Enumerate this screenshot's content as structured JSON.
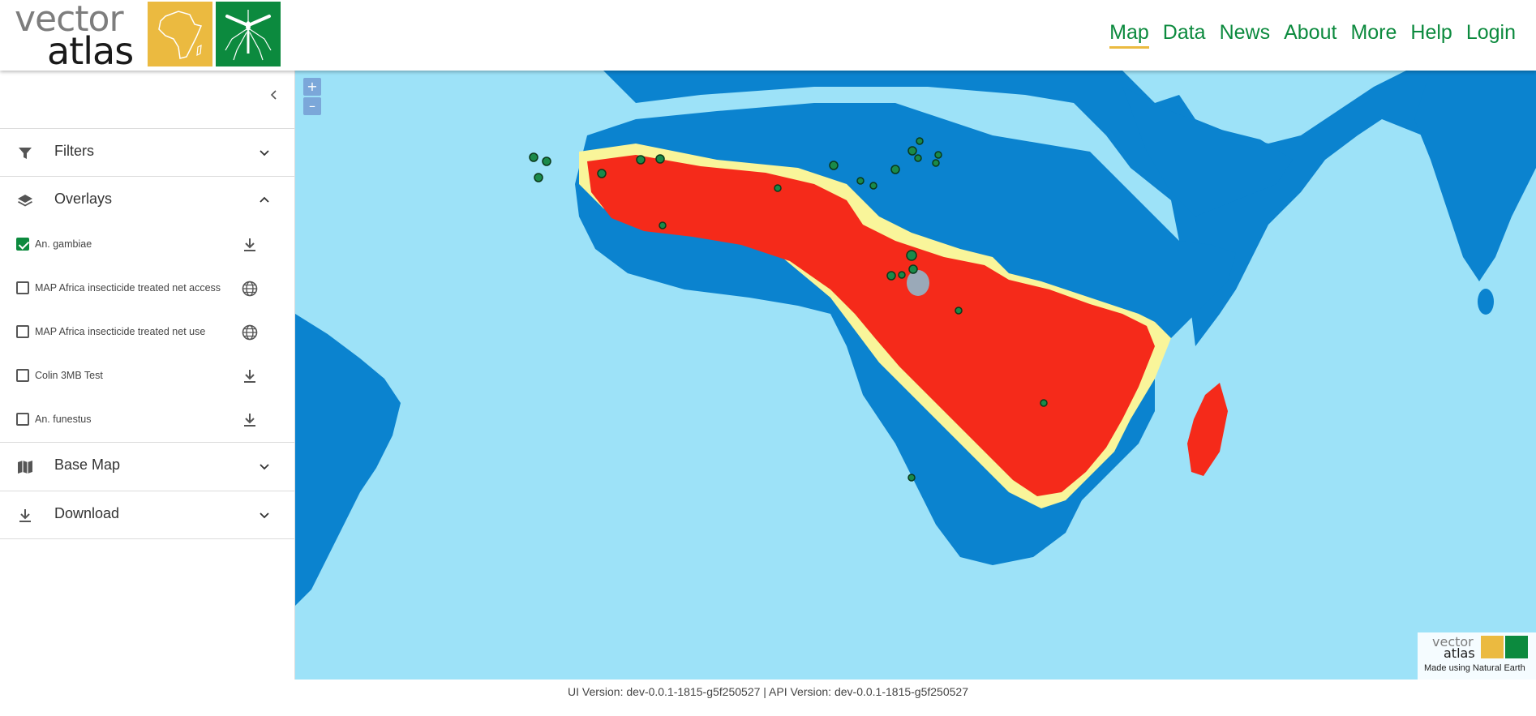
{
  "header": {
    "logo_word1": "vector",
    "logo_word2": "atlas",
    "nav": [
      {
        "label": "Map",
        "active": true
      },
      {
        "label": "Data"
      },
      {
        "label": "News"
      },
      {
        "label": "About"
      },
      {
        "label": "More"
      },
      {
        "label": "Help"
      },
      {
        "label": "Login"
      }
    ]
  },
  "sidebar": {
    "sections": {
      "filters": {
        "label": "Filters",
        "expanded": false
      },
      "overlays": {
        "label": "Overlays",
        "expanded": true
      },
      "base_map": {
        "label": "Base Map",
        "expanded": false
      },
      "download": {
        "label": "Download",
        "expanded": false
      }
    },
    "overlays": [
      {
        "label": "An. gambiae",
        "checked": true,
        "icon": "download-icon"
      },
      {
        "label": "MAP Africa insecticide treated net access",
        "checked": false,
        "icon": "globe-icon"
      },
      {
        "label": "MAP Africa insecticide treated net use",
        "checked": false,
        "icon": "globe-icon"
      },
      {
        "label": "Colin 3MB Test",
        "checked": false,
        "icon": "download-icon"
      },
      {
        "label": "An. funestus",
        "checked": false,
        "icon": "download-icon"
      }
    ]
  },
  "map": {
    "zoom_in": "+",
    "zoom_out": "–",
    "attribution": "Made using Natural Earth",
    "attribution_logo_word1": "vector",
    "attribution_logo_word2": "atlas"
  },
  "colors": {
    "brand_green": "#0c8a3e",
    "brand_yellow": "#ebba40",
    "ocean": "#9de2f8",
    "land": "#0b83cf",
    "heat_high": "#f52a1a",
    "heat_mid": "#f9f59a"
  },
  "footer": {
    "text": "UI Version: dev-0.0.1-1815-g5f250527 | API Version: dev-0.0.1-1815-g5f250527"
  }
}
